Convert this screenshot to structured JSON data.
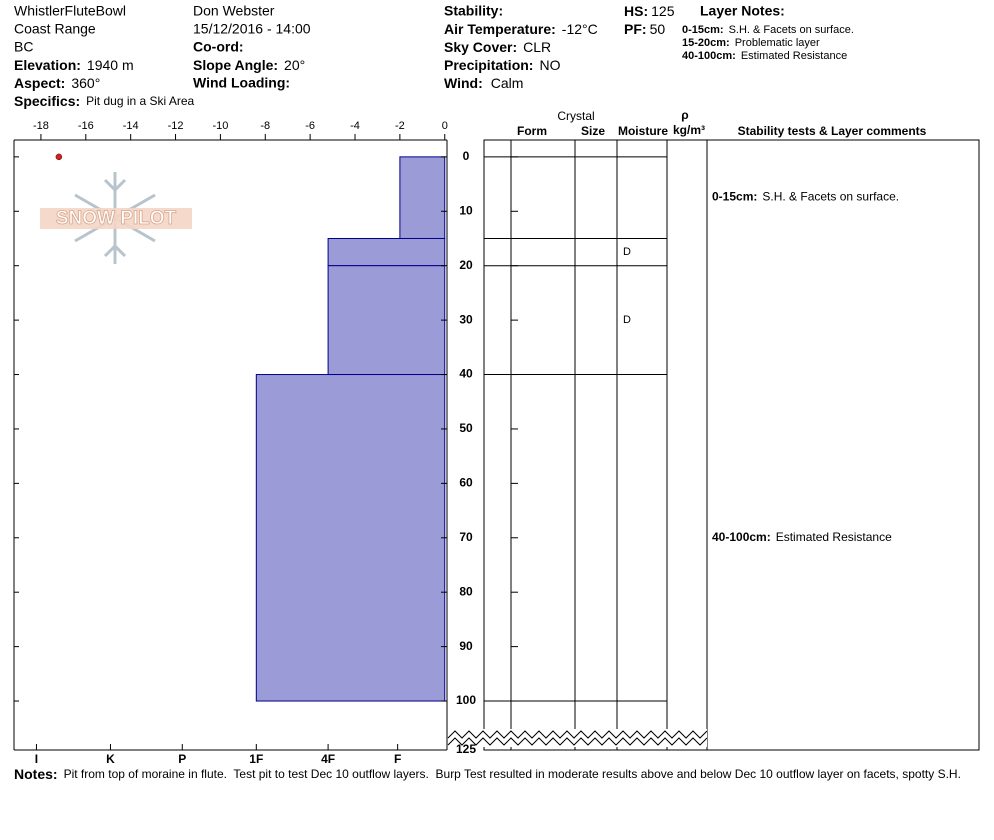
{
  "header": {
    "location": "WhistlerFluteBowl",
    "range": "Coast Range",
    "state": "BC",
    "elevation_label": "Elevation:",
    "elevation": "1940 m",
    "aspect_label": "Aspect:",
    "aspect": "360°",
    "specifics_label": "Specifics:",
    "specifics": "Pit dug in a Ski Area",
    "observer": "Don Webster",
    "datetime": "15/12/2016 - 14:00",
    "coord_label": "Co-ord:",
    "slope_label": "Slope Angle:",
    "slope": "20°",
    "wind_loading_label": "Wind Loading:",
    "stability_label": "Stability:",
    "air_temp_label": "Air Temperature:",
    "air_temp": "-12°C",
    "sky_label": "Sky Cover:",
    "sky": "CLR",
    "precip_label": "Precipitation:",
    "precip": "NO",
    "wind_label": "Wind:",
    "wind": "Calm",
    "hs_label": "HS:",
    "hs": "125",
    "pf_label": "PF:",
    "pf": "50",
    "layer_notes_title": "Layer Notes:",
    "layer_notes": [
      {
        "range": "0-15cm:",
        "text": "S.H. & Facets on surface."
      },
      {
        "range": "15-20cm:",
        "text": "Problematic layer"
      },
      {
        "range": "40-100cm:",
        "text": "Estimated Resistance"
      }
    ]
  },
  "logo": "SNOW PILOT",
  "chart_data": {
    "type": "hardness-profile",
    "xlim": [
      -19.2,
      0.1
    ],
    "xticks": [
      -18,
      -16,
      -14,
      -12,
      -10,
      -8,
      -6,
      -4,
      -2,
      0
    ],
    "hardness_ticks": [
      {
        "value": -18.2,
        "label": "I"
      },
      {
        "value": -14.9,
        "label": "K"
      },
      {
        "value": -11.7,
        "label": "P"
      },
      {
        "value": -8.4,
        "label": "1F"
      },
      {
        "value": -5.2,
        "label": "4F"
      },
      {
        "value": -2.1,
        "label": "F"
      }
    ],
    "ylim": [
      -3.1,
      109
    ],
    "yticks": [
      0,
      10,
      20,
      30,
      40,
      50,
      60,
      70,
      80,
      90,
      100
    ],
    "bottom_label": 125,
    "color": "#9b9bd8",
    "edge_color": "#00008b",
    "layers": [
      {
        "top": 0,
        "bottom": 15,
        "hardness": -2,
        "comment_label": "0-15cm:",
        "comment": "S.H. & Facets on surface."
      },
      {
        "top": 15,
        "bottom": 20,
        "hardness": -5.2,
        "moisture": "D"
      },
      {
        "top": 20,
        "bottom": 40,
        "hardness": -5.2,
        "moisture": "D"
      },
      {
        "top": 40,
        "bottom": 100,
        "hardness": -8.4,
        "comment_label": "40-100cm:",
        "comment": "Estimated Resistance"
      }
    ],
    "point": {
      "x": -17.2,
      "depth": 0,
      "color": "#cc2222"
    },
    "table": {
      "crystal": "Crystal",
      "form": "Form",
      "size": "Size",
      "moisture": "Moisture",
      "rho": "ρ",
      "density_unit": "kg/m³",
      "comments": "Stability tests & Layer comments"
    }
  },
  "notes_label": "Notes:",
  "notes": "Pit from top of moraine in flute.  Test pit to test Dec 10 outflow layers.  Burp Test resulted in moderate results above and below Dec 10 outflow layer on facets, spotty S.H."
}
